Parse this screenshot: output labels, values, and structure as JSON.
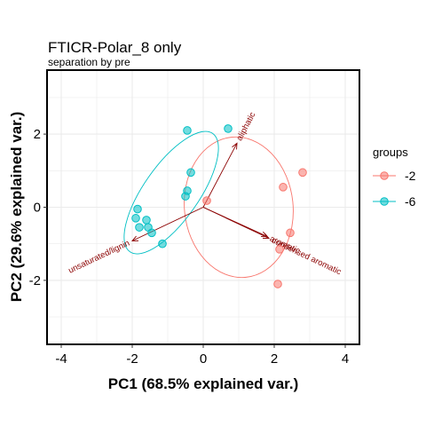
{
  "chart_data": {
    "type": "scatter",
    "title": "FTICR-Polar_8 only",
    "subtitle": "separation by pre",
    "xlabel": "PC1 (68.5% explained var.)",
    "ylabel": "PC2 (29.6% explained var.)",
    "xlim": [
      -4.4,
      4.4
    ],
    "ylim": [
      -3.75,
      3.75
    ],
    "xticks": [
      -4,
      -2,
      0,
      2,
      4
    ],
    "yticks": [
      -2,
      0,
      2
    ],
    "grid": true,
    "legend": {
      "title": "groups",
      "position": "right"
    },
    "series": [
      {
        "name": "-2",
        "color": "#F8766D",
        "points": [
          [
            0.1,
            0.18
          ],
          [
            2.25,
            0.55
          ],
          [
            2.8,
            0.95
          ],
          [
            2.45,
            -0.7
          ],
          [
            2.15,
            -1.15
          ],
          [
            2.1,
            -2.1
          ]
        ],
        "ellipse": {
          "center": [
            1.0,
            0.0
          ],
          "width": 3.06,
          "height": 3.85,
          "rotation": -6
        }
      },
      {
        "name": "-6",
        "color": "#00BFC4",
        "points": [
          [
            -0.45,
            2.1
          ],
          [
            0.7,
            2.15
          ],
          [
            -0.35,
            0.95
          ],
          [
            -0.45,
            0.45
          ],
          [
            -0.5,
            0.3
          ],
          [
            -1.85,
            -0.05
          ],
          [
            -1.9,
            -0.3
          ],
          [
            -1.6,
            -0.35
          ],
          [
            -1.55,
            -0.55
          ],
          [
            -1.8,
            -0.55
          ],
          [
            -1.45,
            -0.7
          ],
          [
            -1.15,
            -1.0
          ]
        ],
        "ellipse": {
          "center": [
            -0.9,
            0.4
          ],
          "width": 1.55,
          "height": 3.95,
          "rotation": 35
        }
      }
    ],
    "vectors": [
      {
        "label": "aliphatic",
        "end": [
          0.95,
          1.75
        ]
      },
      {
        "label": "aromatic",
        "end": [
          1.8,
          -0.8
        ]
      },
      {
        "label": "condensed aromatic",
        "end": [
          1.85,
          -0.85
        ]
      },
      {
        "label": "unsaturated/lignin",
        "end": [
          -2.0,
          -0.92
        ]
      }
    ]
  }
}
